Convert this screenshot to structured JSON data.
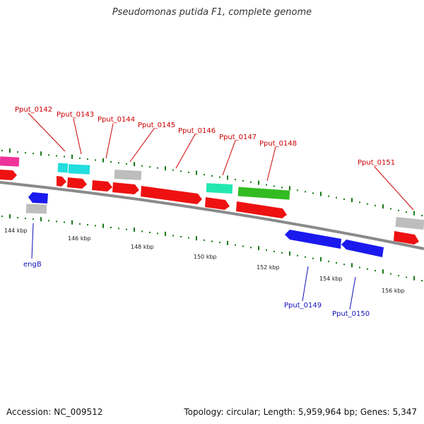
{
  "title": "Pseudomonas putida F1, complete genome",
  "footer": {
    "accession": "Accession: NC_009512",
    "summary": "Topology: circular; Length: 5,959,964 bp; Genes: 5,347"
  },
  "colors": {
    "backbone": "#8a8a8a",
    "tick": "#1a7a1a",
    "red_gene": "#ee1111",
    "blue_gene": "#1a1aee",
    "grey_gene": "#bdbdbd",
    "cyan_gene": "#22dddd",
    "teal_gene": "#22e8b0",
    "green_gene": "#33bb22",
    "magenta_gene": "#ee3399",
    "label_red": "#cc0000",
    "label_blue": "#1010bb"
  },
  "scale_labels": [
    "144 kbp",
    "146 kbp",
    "148 kbp",
    "150 kbp",
    "152 kbp",
    "154 kbp",
    "156 kbp"
  ],
  "gene_labels": {
    "forward": [
      "Pput_0142",
      "Pput_0143",
      "Pput_0144",
      "Pput_0145",
      "Pput_0146",
      "Pput_0147",
      "Pput_0148",
      "Pput_0151"
    ],
    "reverse": [
      "engB",
      "Pput_0149",
      "Pput_0150"
    ]
  }
}
